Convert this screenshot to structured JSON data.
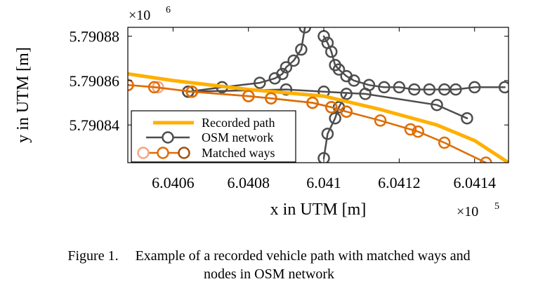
{
  "chart_data": {
    "type": "line",
    "xlabel": "x in UTM [m]",
    "ylabel": "y in UTM [m]",
    "x_multiplier": "×10",
    "x_exponent": "5",
    "y_multiplier": "×10",
    "y_exponent": "6",
    "xlim": [
      604048,
      604149
    ],
    "ylim": [
      5790823,
      5790884
    ],
    "xticks": [
      604060,
      604080,
      604100,
      604120,
      604140
    ],
    "xtick_labels": [
      "6.0406",
      "6.0408",
      "6.041",
      "6.0412",
      "6.0414"
    ],
    "yticks": [
      5790840,
      5790860,
      5790880
    ],
    "ytick_labels": [
      "5.79084",
      "5.79086",
      "5.79088"
    ],
    "grid": false,
    "legend_position": "lower-left",
    "series": [
      {
        "name": "Recorded path",
        "color": "#FFB000",
        "marker": "none",
        "x": [
          604048,
          604060,
          604080,
          604100,
          604115,
          604130,
          604140,
          604149
        ],
        "y": [
          5790863,
          5790860,
          5790856,
          5790853,
          5790847,
          5790840,
          5790833,
          5790823
        ]
      },
      {
        "name": "OSM network",
        "color": "#4D4D4D",
        "marker": "o",
        "x": [
          604100,
          604101,
          604102,
          604103,
          604104,
          604106,
          604108,
          604112,
          604116,
          604120,
          604124,
          604128,
          604132,
          604135,
          604140,
          604148
        ],
        "y": [
          5790880,
          5790877,
          5790873,
          5790867,
          5790865,
          5790862,
          5790860,
          5790858,
          5790857,
          5790857,
          5790856,
          5790856,
          5790856,
          5790856,
          5790857,
          5790857
        ]
      },
      {
        "name": "Matched ways",
        "color": "#E06C00",
        "marker": "o",
        "x": [
          604048,
          604055,
          604065,
          604080,
          604086,
          604097,
          604102,
          604106,
          604115,
          604123,
          604125,
          604132,
          604143
        ],
        "y": [
          5790858,
          5790857,
          5790855,
          5790853,
          5790852,
          5790850,
          5790848,
          5790846,
          5790842,
          5790838,
          5790837,
          5790832,
          5790823
        ]
      }
    ],
    "extra_series": [
      {
        "color": "#4D4D4D",
        "marker": "o",
        "x": [
          604064,
          604073,
          604083,
          604087,
          604089,
          604090,
          604092,
          604094,
          604095
        ],
        "y": [
          5790855,
          5790857,
          5790859,
          5790861,
          5790863,
          5790866,
          5790869,
          5790874,
          5790884
        ]
      },
      {
        "color": "#4D4D4D",
        "marker": "o",
        "x": [
          604064,
          604090,
          604100,
          604111,
          604130,
          604138
        ],
        "y": [
          5790855,
          5790856,
          5790855,
          5790854,
          5790849,
          5790843
        ]
      },
      {
        "color": "#4D4D4D",
        "marker": "o",
        "x": [
          604100,
          604101,
          604103,
          604104,
          604106
        ],
        "y": [
          5790825,
          5790836,
          5790843,
          5790848,
          5790854
        ]
      },
      {
        "color": "#F4A582",
        "marker": "o",
        "x": [
          604048,
          604056,
          604065
        ],
        "y": [
          5790858,
          5790857,
          5790855
        ]
      },
      {
        "color": "#A0520A",
        "marker": "o",
        "x": [
          604065,
          604080,
          604086,
          604097,
          604102,
          604106
        ],
        "y": [
          5790855,
          5790853,
          5790852,
          5790850,
          5790848,
          5790846
        ]
      }
    ]
  },
  "caption": {
    "number": "Figure 1.",
    "line1": "Example of a recorded vehicle path with matched ways and",
    "line2": "nodes in OSM network"
  }
}
